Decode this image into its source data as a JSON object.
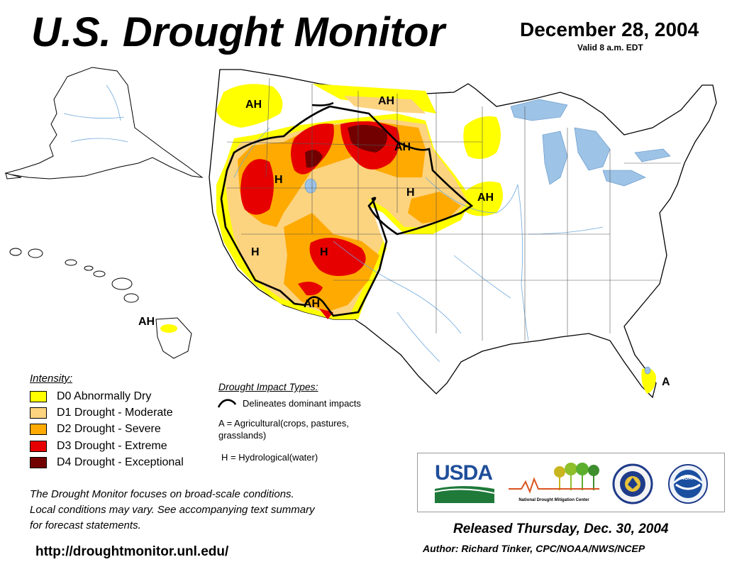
{
  "header": {
    "title": "U.S. Drought Monitor",
    "date": "December 28, 2004",
    "valid": "Valid 8 a.m. EDT"
  },
  "map_labels": {
    "ah": "AH",
    "h": "H",
    "a": "A"
  },
  "legend": {
    "title": "Intensity:",
    "items": [
      {
        "label": "D0 Abnormally Dry",
        "color": "#ffff00"
      },
      {
        "label": "D1 Drought - Moderate",
        "color": "#fcd37f"
      },
      {
        "label": "D2 Drought - Severe",
        "color": "#ffaa00"
      },
      {
        "label": "D3 Drought - Extreme",
        "color": "#e60000"
      },
      {
        "label": "D4 Drought - Exceptional",
        "color": "#730000"
      }
    ]
  },
  "impacts": {
    "title": "Drought Impact Types:",
    "delineates": "Delineates dominant impacts",
    "agricultural_1": "A = Agricultural(crops, pastures,",
    "agricultural_2": "grasslands)",
    "hydrological": "H = Hydrological(water)"
  },
  "note": {
    "line1": "The Drought Monitor focuses on broad-scale conditions.",
    "line2": "Local conditions may vary. See accompanying text summary",
    "line3": "for forecast statements."
  },
  "url": "http://droughtmonitor.unl.edu/",
  "logos": {
    "usda": "USDA",
    "ndmc": "National Drought Mitigation Center",
    "noaa": "NOAA"
  },
  "footer": {
    "released": "Released Thursday, Dec. 30, 2004",
    "author": "Author: Richard Tinker, CPC/NOAA/NWS/NCEP"
  }
}
